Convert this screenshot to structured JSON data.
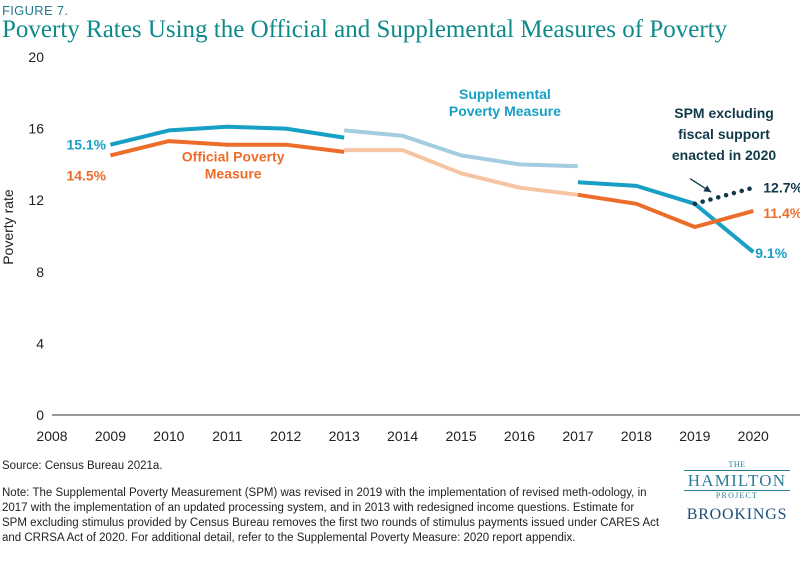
{
  "figure_label": "FIGURE 7.",
  "title": "Poverty Rates Using the Official and Supplemental Measures of Poverty",
  "source": "Source: Census Bureau 2021a.",
  "note": "Note: The Supplemental Poverty Measurement (SPM) was revised in 2019 with the implementation of revised meth-odology, in 2017 with the implementation of an updated processing system, and in 2013 with redesigned income questions. Estimate for SPM excluding stimulus provided by Census Bureau removes the first two rounds of stimulus payments issued under CARES Act and CRRSA Act of 2020. For additional detail, refer to the Supplemental Poverty Measure: 2020 report appendix.",
  "logo": {
    "the": "THE",
    "hamilton": "HAMILTON",
    "project": "PROJECT",
    "brookings": "BROOKINGS"
  },
  "colors": {
    "spm": "#17a0c4",
    "spm_light": "#a3cde1",
    "official": "#ec6d2a",
    "official_light": "#f6c3a3",
    "dotted": "#12394a",
    "title": "#0e8a8a"
  },
  "chart_data": {
    "type": "line",
    "ylabel": "Poverty rate",
    "xlabel": "",
    "xlim": [
      2008,
      2020.8
    ],
    "ylim": [
      0,
      20
    ],
    "x_ticks": [
      "2008",
      "2009",
      "2010",
      "2011",
      "2012",
      "2013",
      "2014",
      "2015",
      "2016",
      "2017",
      "2018",
      "2019",
      "2020"
    ],
    "y_ticks": [
      "0",
      "4",
      "8",
      "12",
      "16",
      "20"
    ],
    "grid": false,
    "series": [
      {
        "name": "Supplemental Poverty Measure",
        "color": "#17a0c4",
        "segment": 1,
        "x": [
          2009,
          2010,
          2011,
          2012,
          2013
        ],
        "values": [
          15.1,
          15.9,
          16.1,
          16.0,
          15.5
        ]
      },
      {
        "name": "Supplemental Poverty Measure",
        "color": "#a3cde1",
        "segment": 2,
        "x": [
          2013,
          2014,
          2015,
          2016,
          2017
        ],
        "values": [
          15.9,
          15.6,
          14.5,
          14.0,
          13.9
        ]
      },
      {
        "name": "Supplemental Poverty Measure",
        "color": "#17a0c4",
        "segment": 3,
        "x": [
          2017,
          2018,
          2019,
          2020
        ],
        "values": [
          13.0,
          12.8,
          11.8,
          9.1
        ]
      },
      {
        "name": "Official Poverty Measure",
        "color": "#ec6d2a",
        "segment": 1,
        "x": [
          2009,
          2010,
          2011,
          2012,
          2013
        ],
        "values": [
          14.5,
          15.3,
          15.1,
          15.1,
          14.7
        ]
      },
      {
        "name": "Official Poverty Measure",
        "color": "#f6c3a3",
        "segment": 2,
        "x": [
          2013,
          2014,
          2015,
          2016,
          2017
        ],
        "values": [
          14.8,
          14.8,
          13.5,
          12.7,
          12.3
        ]
      },
      {
        "name": "Official Poverty Measure",
        "color": "#ec6d2a",
        "segment": 3,
        "x": [
          2017,
          2018,
          2019,
          2020
        ],
        "values": [
          12.3,
          11.8,
          10.5,
          11.4
        ]
      },
      {
        "name": "SPM excluding fiscal support enacted in 2020",
        "color": "#12394a",
        "dotted": true,
        "x": [
          2019,
          2020
        ],
        "values": [
          11.8,
          12.7
        ]
      }
    ],
    "annotations": [
      {
        "id": "spm-label",
        "lines": [
          "Supplemental",
          "Poverty Measure"
        ],
        "color": "#17a0c4"
      },
      {
        "id": "official-label",
        "lines": [
          "Official Poverty",
          "Measure"
        ],
        "color": "#ec6d2a"
      },
      {
        "id": "stimulus-label",
        "lines": [
          "SPM excluding",
          "fiscal support",
          "enacted in 2020"
        ],
        "color": "#12394a"
      }
    ],
    "value_labels": [
      {
        "text": "15.1%",
        "x": 2009,
        "value": 15.1,
        "color": "#17a0c4"
      },
      {
        "text": "14.5%",
        "x": 2009,
        "value": 14.5,
        "color": "#ec6d2a"
      },
      {
        "text": "12.7%",
        "x": 2020,
        "value": 12.7,
        "color": "#12394a"
      },
      {
        "text": "11.4%",
        "x": 2020,
        "value": 11.4,
        "color": "#ec6d2a"
      },
      {
        "text": "9.1%",
        "x": 2020,
        "value": 9.1,
        "color": "#17a0c4"
      }
    ]
  }
}
